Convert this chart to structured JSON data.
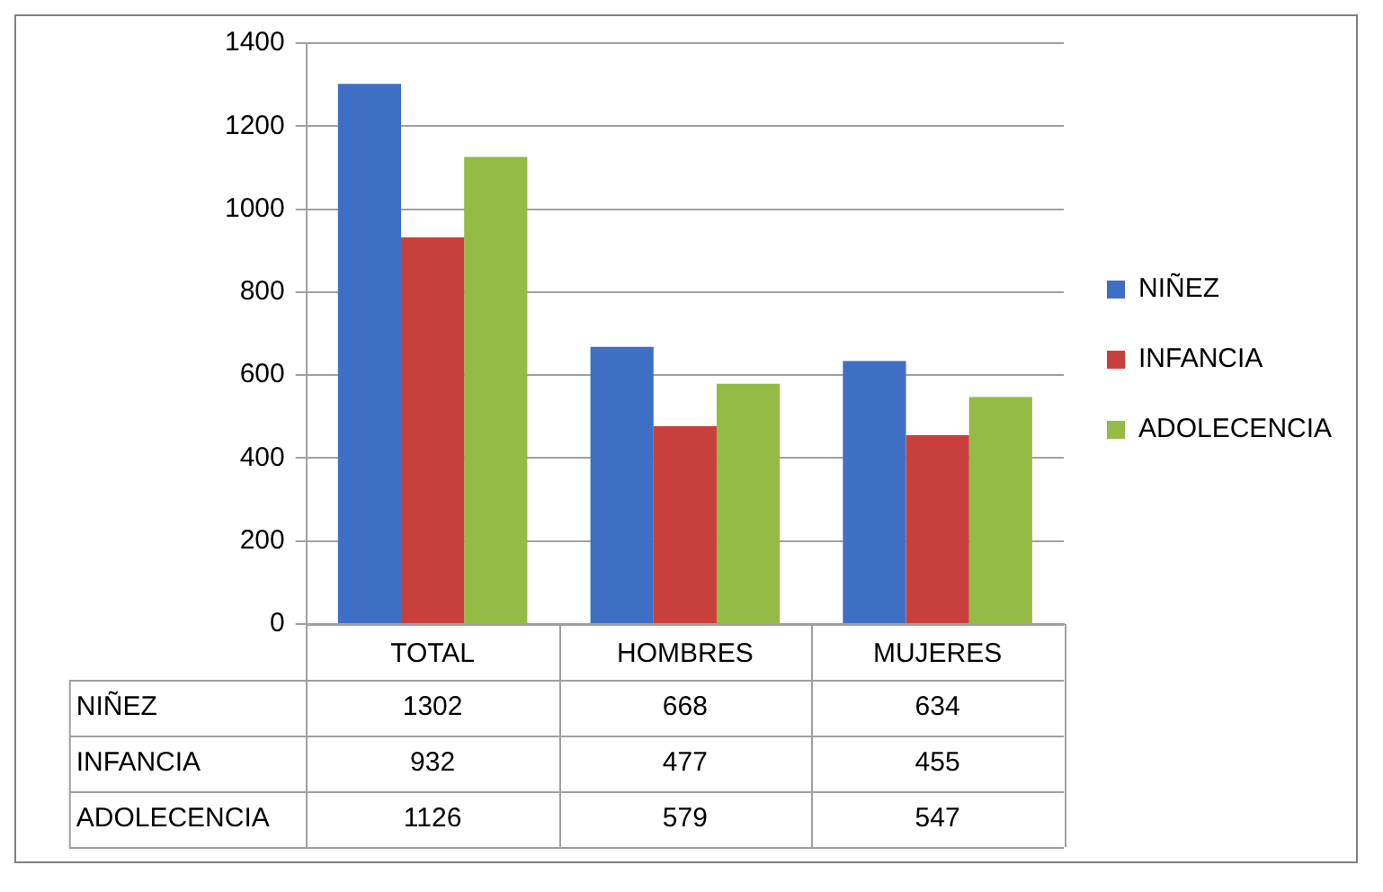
{
  "chart_data": {
    "type": "bar",
    "categories": [
      "TOTAL",
      "HOMBRES",
      "MUJERES"
    ],
    "series": [
      {
        "name": "NIÑEZ",
        "color": "#3f6fc4",
        "values": [
          1302,
          668,
          634
        ]
      },
      {
        "name": "INFANCIA",
        "color": "#c8403b",
        "values": [
          932,
          477,
          455
        ]
      },
      {
        "name": "ADOLECENCIA",
        "color": "#93bb45",
        "values": [
          1126,
          579,
          547
        ]
      }
    ],
    "ylim": [
      0,
      1400
    ],
    "yticks": [
      0,
      200,
      400,
      600,
      800,
      1000,
      1200,
      1400
    ],
    "grid": "y",
    "legend": "right",
    "data_labels": true
  }
}
